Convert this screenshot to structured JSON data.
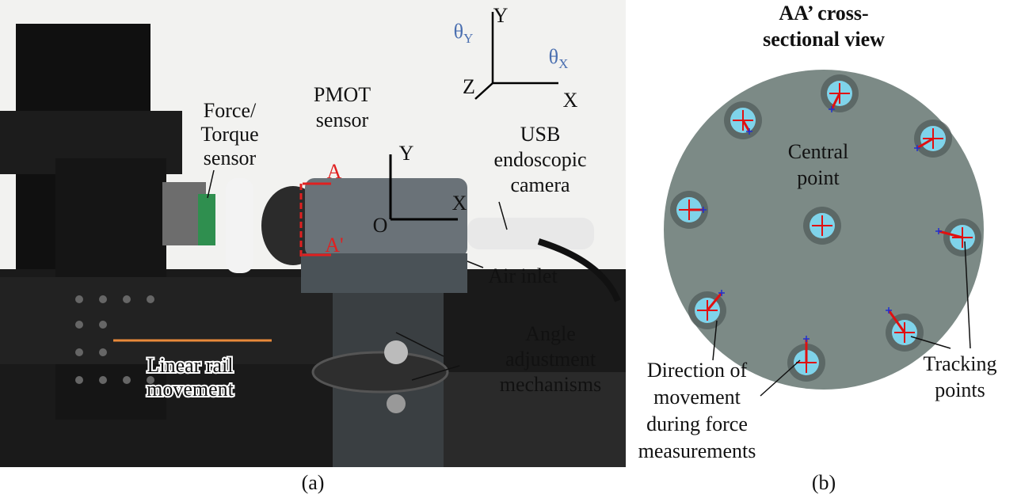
{
  "panel_a": {
    "caption": "(a)",
    "annotations": {
      "force_torque_sensor": [
        "Force/",
        "Torque",
        "sensor"
      ],
      "pmot_sensor": [
        "PMOT",
        "sensor"
      ],
      "usb_camera": [
        "USB",
        "endoscopic",
        "camera"
      ],
      "air_inlet": [
        "Air inlet"
      ],
      "angle_adjustment": [
        "Angle",
        "adjustment",
        "mechanisms"
      ],
      "linear_rail": [
        "Linear rail",
        "movement"
      ]
    },
    "section_marks": [
      "A",
      "A'"
    ],
    "local_axes": {
      "y": "Y",
      "x": "X",
      "origin": "O"
    },
    "global_axes": {
      "y": "Y",
      "x": "X",
      "z": "Z",
      "theta_y": {
        "symbol": "θ",
        "sub": "Y"
      },
      "theta_x": {
        "symbol": "θ",
        "sub": "X"
      }
    }
  },
  "panel_b": {
    "title": [
      "AA’ cross-",
      "sectional view"
    ],
    "caption": "(b)",
    "annotations": {
      "central_point": [
        "Central",
        "point"
      ],
      "tracking_points": [
        "Tracking",
        "points"
      ],
      "direction": [
        "Direction of",
        "movement",
        "during force",
        "measurements"
      ]
    }
  }
}
